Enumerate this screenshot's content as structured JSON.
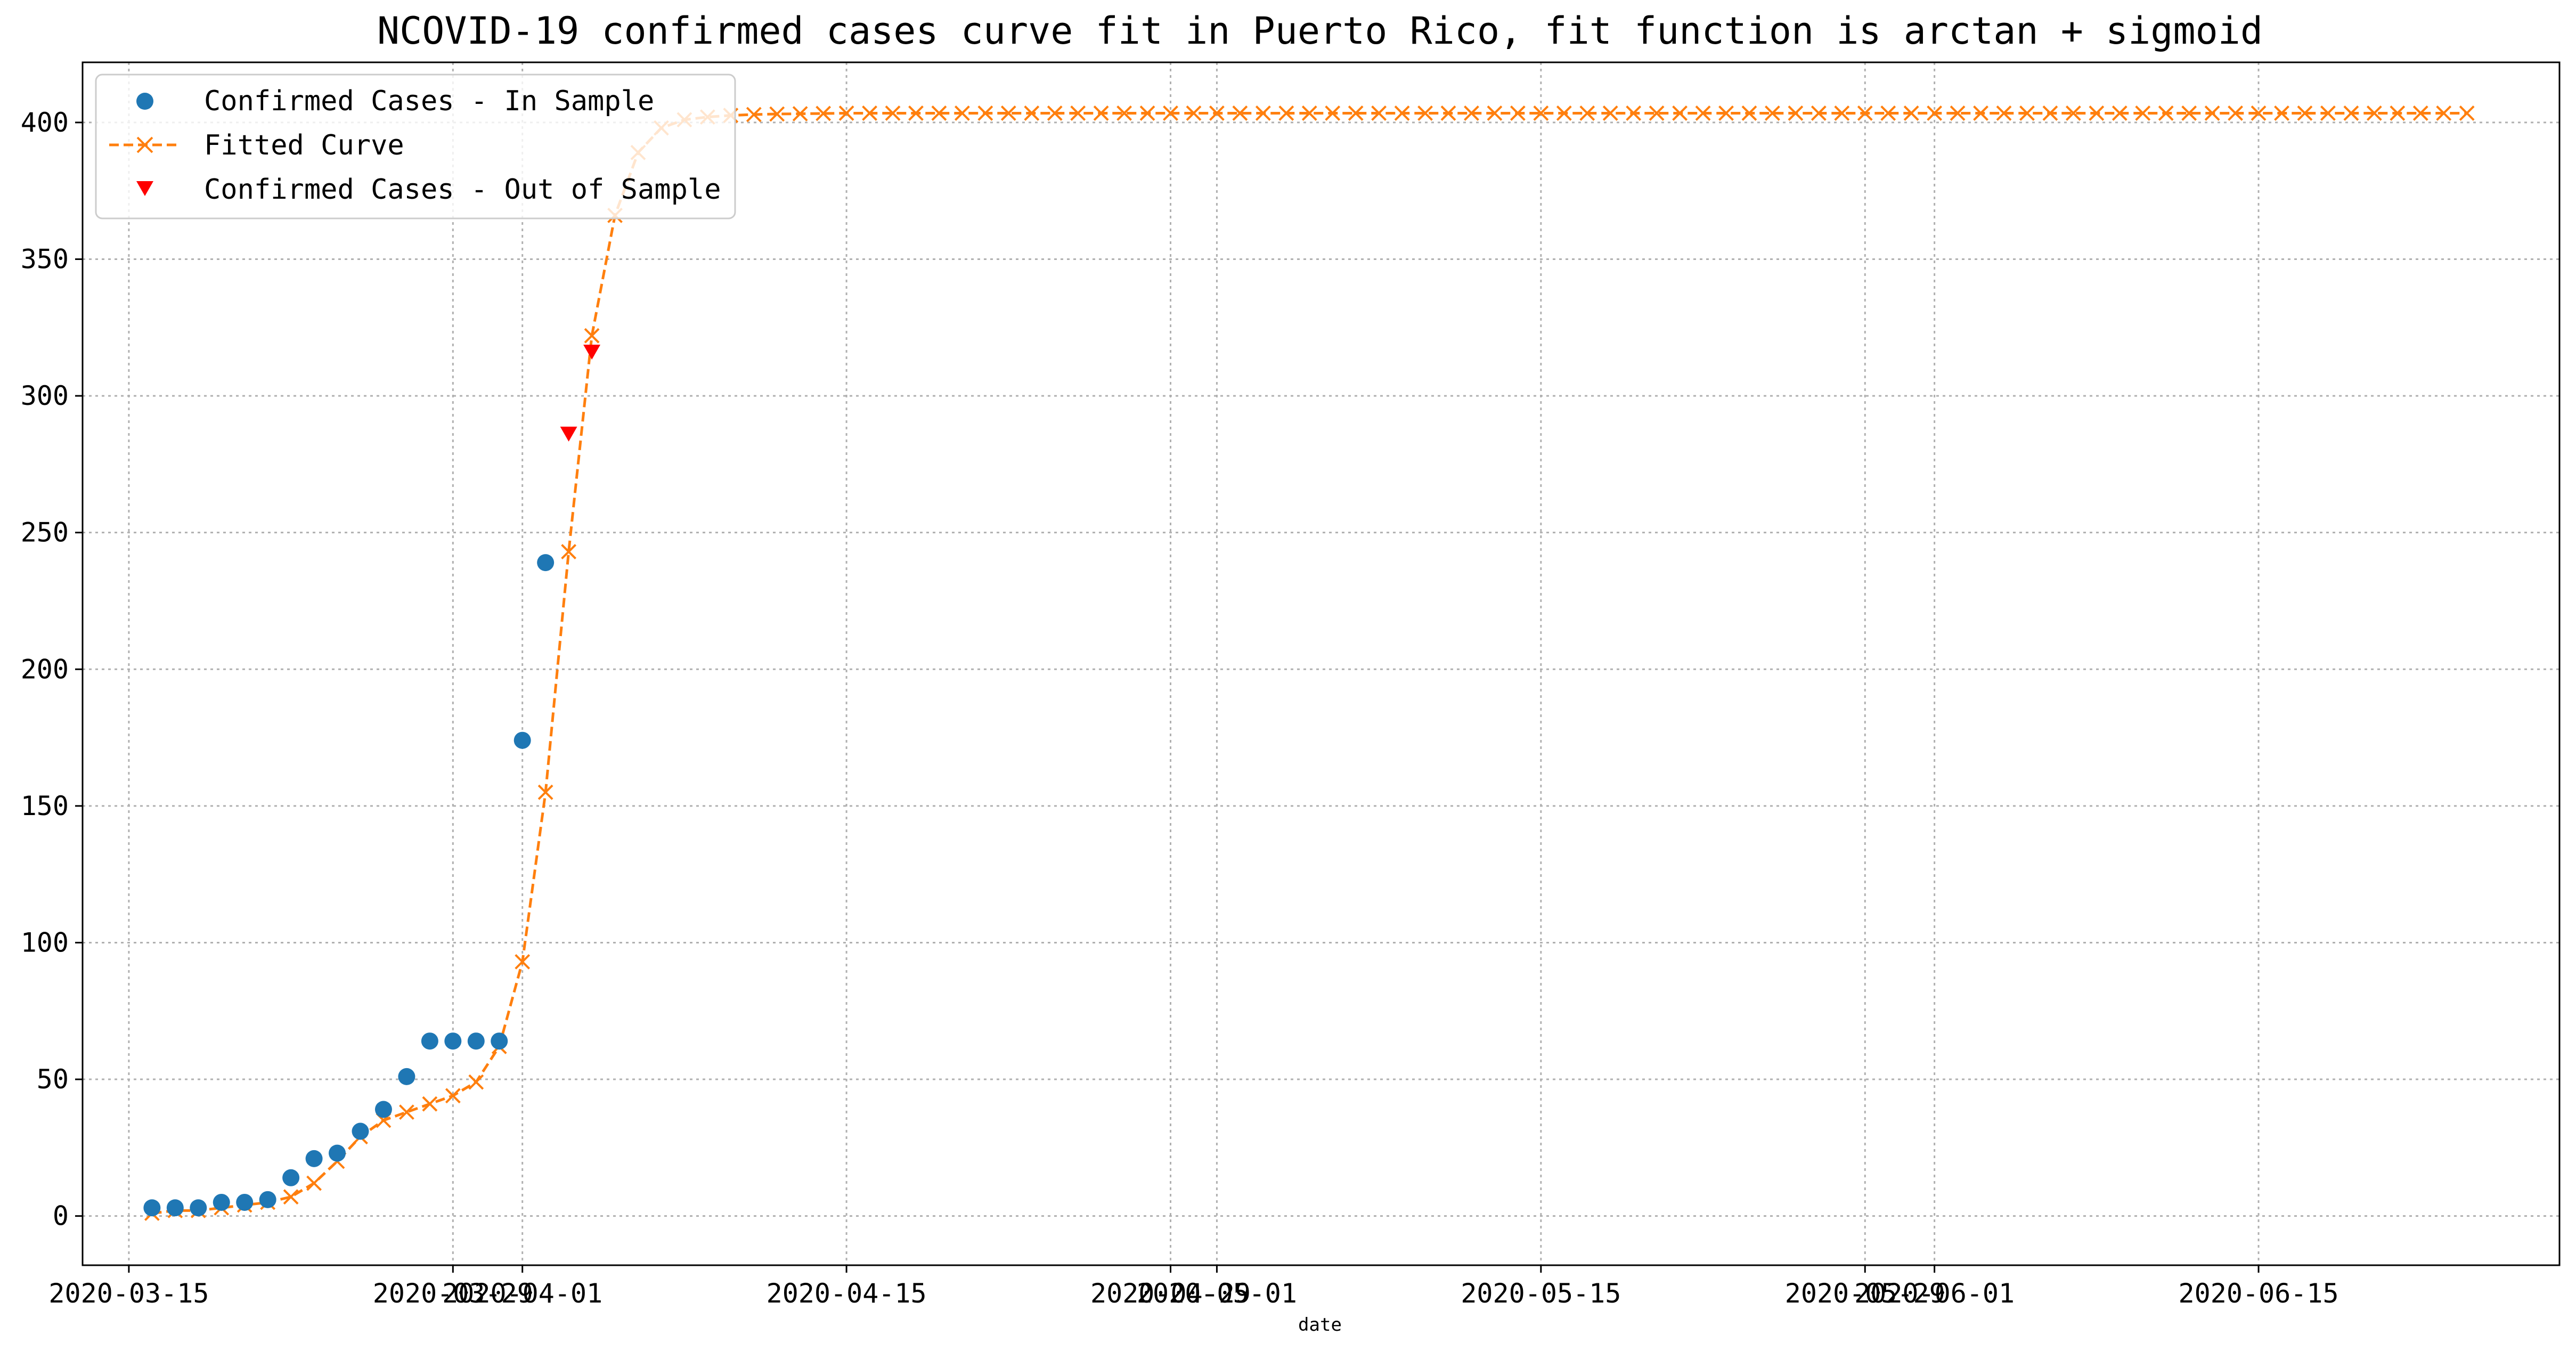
{
  "chart_data": {
    "type": "line",
    "title": "NCOVID-19 confirmed cases curve fit in Puerto Rico, fit function is arctan + sigmoid",
    "xlabel": "date",
    "ylabel": "",
    "x_type": "date",
    "xlim": [
      "2020-03-13",
      "2020-06-28"
    ],
    "ylim": [
      -18,
      422
    ],
    "xticks": [
      {
        "date": "2020-03-15",
        "label": "2020-03-15"
      },
      {
        "date": "2020-03-29",
        "label": "2020-03-29"
      },
      {
        "date": "2020-04-01",
        "label": "2020-04-01"
      },
      {
        "date": "2020-04-15",
        "label": "2020-04-15"
      },
      {
        "date": "2020-04-29",
        "label": "2020-04-29"
      },
      {
        "date": "2020-05-01",
        "label": "2020-05-01"
      },
      {
        "date": "2020-05-15",
        "label": "2020-05-15"
      },
      {
        "date": "2020-05-29",
        "label": "2020-05-29"
      },
      {
        "date": "2020-06-01",
        "label": "2020-06-01"
      },
      {
        "date": "2020-06-15",
        "label": "2020-06-15"
      }
    ],
    "yticks": [
      0,
      50,
      100,
      150,
      200,
      250,
      300,
      350,
      400
    ],
    "grid": true,
    "legend_position": "top-left",
    "series": [
      {
        "name": "Confirmed Cases - In Sample",
        "kind": "scatter-circle",
        "color": "#1f77b4",
        "points": [
          [
            "2020-03-16",
            3
          ],
          [
            "2020-03-17",
            3
          ],
          [
            "2020-03-18",
            3
          ],
          [
            "2020-03-19",
            5
          ],
          [
            "2020-03-20",
            5
          ],
          [
            "2020-03-21",
            6
          ],
          [
            "2020-03-22",
            14
          ],
          [
            "2020-03-23",
            21
          ],
          [
            "2020-03-24",
            23
          ],
          [
            "2020-03-25",
            31
          ],
          [
            "2020-03-26",
            39
          ],
          [
            "2020-03-27",
            51
          ],
          [
            "2020-03-28",
            64
          ],
          [
            "2020-03-29",
            64
          ],
          [
            "2020-03-30",
            64
          ],
          [
            "2020-03-31",
            64
          ],
          [
            "2020-04-01",
            174
          ],
          [
            "2020-04-02",
            239
          ]
        ]
      },
      {
        "name": "Fitted Curve",
        "kind": "dashed-line-x",
        "color": "#ff7f0e",
        "start_date": "2020-03-16",
        "end_date": "2020-06-24",
        "head_values": [
          1,
          2,
          2,
          3,
          4,
          5,
          7,
          12,
          20,
          29,
          35,
          38,
          41,
          44,
          49,
          62,
          93,
          155,
          243,
          322,
          366,
          389,
          398,
          401,
          402,
          402.6,
          402.9,
          403.1,
          403.2,
          403.3
        ],
        "plateau_value": 403.4
      },
      {
        "name": "Confirmed Cases - Out of Sample",
        "kind": "scatter-triangle-down",
        "color": "#ff0000",
        "points": [
          [
            "2020-04-03",
            286
          ],
          [
            "2020-04-04",
            316
          ]
        ]
      }
    ]
  }
}
